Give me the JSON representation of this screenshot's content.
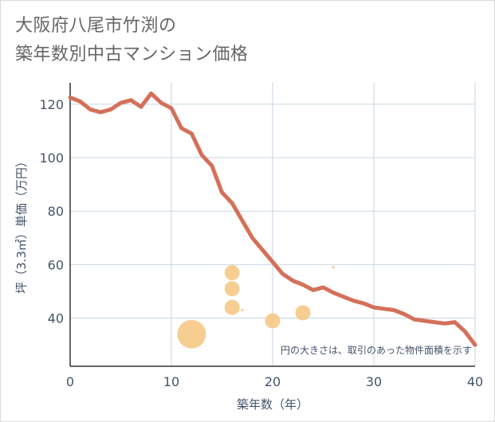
{
  "title": {
    "line1": "大阪府八尾市竹渕の",
    "line2": "築年数別中古マンション価格"
  },
  "colors": {
    "line": "#d4705a",
    "bubble": "#f5c67e",
    "grid": "#c9d6e3",
    "text": "#44546a",
    "title": "#666666"
  },
  "chart_data": {
    "type": "line",
    "xlabel": "築年数（年）",
    "ylabel": "坪（3.3㎡）単価（万円）",
    "xlim": [
      0,
      40
    ],
    "ylim": [
      22,
      128
    ],
    "x_ticks": [
      0,
      10,
      20,
      30,
      40
    ],
    "y_ticks": [
      40,
      60,
      80,
      100,
      120
    ],
    "grid": true,
    "note": "円の大きさは、取引のあった物件面積を示す",
    "series": [
      {
        "x": [
          0,
          1,
          2,
          3,
          4,
          5,
          6,
          7,
          8,
          9,
          10,
          11,
          12,
          13,
          14,
          15,
          16,
          17,
          18,
          19,
          20,
          21,
          22,
          23,
          24,
          25,
          26,
          27,
          28,
          29,
          30,
          31,
          32,
          33,
          34,
          35,
          36,
          37,
          38,
          39,
          40
        ],
        "values": [
          122.5,
          121,
          118,
          117,
          118,
          120.5,
          121.5,
          119,
          124,
          120.5,
          118.5,
          111,
          109,
          101,
          97,
          87,
          83,
          76.5,
          70,
          65.5,
          61,
          56.5,
          54,
          52.5,
          50.5,
          51.5,
          49.5,
          48,
          46.5,
          45.5,
          44,
          43.5,
          43,
          41.5,
          39.5,
          39,
          38.5,
          38,
          38.5,
          35,
          30
        ]
      }
    ],
    "bubbles": [
      {
        "x": 12,
        "y": 34,
        "size": 18
      },
      {
        "x": 16,
        "y": 57,
        "size": 9.5
      },
      {
        "x": 16,
        "y": 51,
        "size": 9.5
      },
      {
        "x": 16,
        "y": 44,
        "size": 9.5
      },
      {
        "x": 17,
        "y": 43,
        "size": 1.6
      },
      {
        "x": 20,
        "y": 39,
        "size": 9.5
      },
      {
        "x": 23,
        "y": 42,
        "size": 9.5
      },
      {
        "x": 26,
        "y": 59,
        "size": 1.6
      }
    ]
  }
}
